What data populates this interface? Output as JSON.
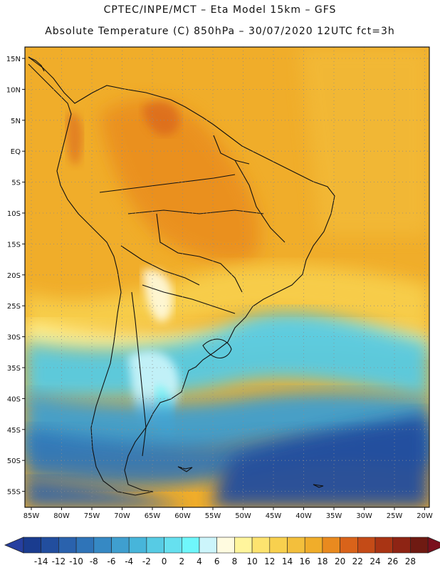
{
  "title_line1": "CPTEC/INPE/MCT –  Eta Model 15km – GFS",
  "title_line2": "Absolute Temperature (C) 850hPa – 30/07/2020 12UTC fct=3h",
  "latitude_labels": [
    "15N",
    "10N",
    "5N",
    "EQ",
    "5S",
    "10S",
    "15S",
    "20S",
    "25S",
    "30S",
    "35S",
    "40S",
    "45S",
    "50S",
    "55S"
  ],
  "longitude_labels": [
    "85W",
    "80W",
    "75W",
    "70W",
    "65W",
    "60W",
    "55W",
    "50W",
    "45W",
    "40W",
    "35W",
    "30W",
    "25W",
    "20W"
  ],
  "colorbar": {
    "ticks": [
      "-14",
      "-12",
      "-10",
      "-8",
      "-6",
      "-4",
      "-2",
      "0",
      "2",
      "4",
      "6",
      "8",
      "10",
      "12",
      "14",
      "16",
      "18",
      "20",
      "22",
      "24",
      "26",
      "28"
    ],
    "colors": [
      "#1a3c8f",
      "#224e9e",
      "#2a62ad",
      "#2f74b8",
      "#3689c4",
      "#3f9fcf",
      "#47b5da",
      "#57cbe4",
      "#66e0ef",
      "#6ff7fb",
      "#ccf5fb",
      "#fffbe0",
      "#fff59c",
      "#fde36f",
      "#f8d04e",
      "#f3bf3c",
      "#f0ad2a",
      "#e98a1f",
      "#d9631a",
      "#c44b17",
      "#a93414",
      "#8e2414",
      "#6f1a12"
    ],
    "low_arrow_color": "#263fa0",
    "high_arrow_color": "#7a0f1d"
  }
}
